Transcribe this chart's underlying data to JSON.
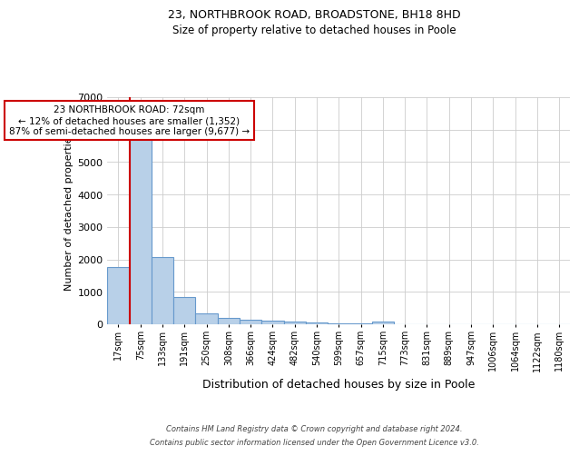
{
  "title1": "23, NORTHBROOK ROAD, BROADSTONE, BH18 8HD",
  "title2": "Size of property relative to detached houses in Poole",
  "xlabel": "Distribution of detached houses by size in Poole",
  "ylabel": "Number of detached properties",
  "categories": [
    "17sqm",
    "75sqm",
    "133sqm",
    "191sqm",
    "250sqm",
    "308sqm",
    "366sqm",
    "424sqm",
    "482sqm",
    "540sqm",
    "599sqm",
    "657sqm",
    "715sqm",
    "773sqm",
    "831sqm",
    "889sqm",
    "947sqm",
    "1006sqm",
    "1064sqm",
    "1122sqm",
    "1180sqm"
  ],
  "values": [
    1760,
    5780,
    2060,
    830,
    350,
    210,
    135,
    100,
    75,
    55,
    40,
    30,
    80,
    0,
    0,
    0,
    0,
    0,
    0,
    0,
    0
  ],
  "bar_color": "#b8d0e8",
  "bar_edge_color": "#6699cc",
  "annotation_text": "23 NORTHBROOK ROAD: 72sqm\n← 12% of detached houses are smaller (1,352)\n87% of semi-detached houses are larger (9,677) →",
  "annotation_box_color": "#ffffff",
  "annotation_box_edge": "#cc0000",
  "vline_color": "#cc0000",
  "vline_x": 0.5,
  "ylim": [
    0,
    7000
  ],
  "footer1": "Contains HM Land Registry data © Crown copyright and database right 2024.",
  "footer2": "Contains public sector information licensed under the Open Government Licence v3.0.",
  "background_color": "#ffffff",
  "grid_color": "#cccccc",
  "title1_fontsize": 9,
  "title2_fontsize": 8.5,
  "ylabel_fontsize": 8,
  "xlabel_fontsize": 9,
  "tick_fontsize": 7,
  "footer_fontsize": 6,
  "annotation_fontsize": 7.5
}
